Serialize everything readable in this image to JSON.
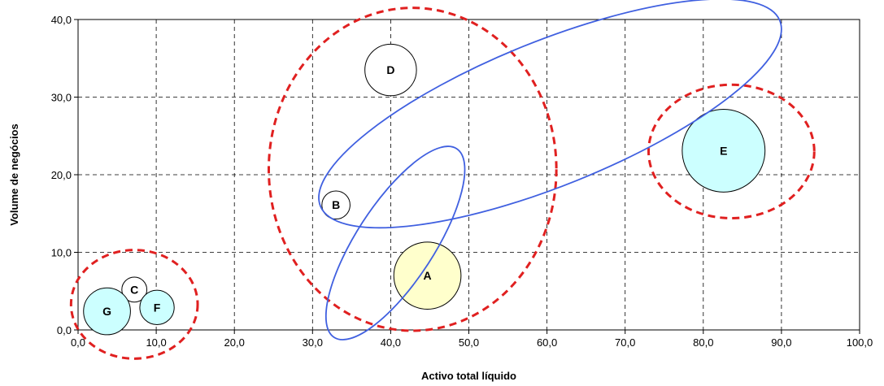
{
  "chart_data": {
    "type": "scatter",
    "subtype": "bubble",
    "xlabel": "Activo total líquido",
    "ylabel": "Volume de negócios",
    "xlim": [
      0,
      100
    ],
    "ylim": [
      0,
      40
    ],
    "x_ticks": [
      "0,0",
      "10,0",
      "20,0",
      "30,0",
      "40,0",
      "50,0",
      "60,0",
      "70,0",
      "80,0",
      "90,0",
      "100,0"
    ],
    "y_ticks": [
      "0,0",
      "10,0",
      "20,0",
      "30,0",
      "40,0"
    ],
    "grid": true,
    "grid_style": "dashed",
    "points": [
      {
        "label": "A",
        "x": 44.7,
        "y": 7.0,
        "size": 4.3,
        "color": "#ffffcc"
      },
      {
        "label": "B",
        "x": 33.0,
        "y": 16.1,
        "size": 1.8,
        "color": "#ffffff"
      },
      {
        "label": "C",
        "x": 7.2,
        "y": 5.2,
        "size": 1.6,
        "color": "#ffffff"
      },
      {
        "label": "D",
        "x": 40.0,
        "y": 33.5,
        "size": 3.3,
        "color": "#ffffff"
      },
      {
        "label": "E",
        "x": 82.6,
        "y": 23.1,
        "size": 5.3,
        "color": "#ccffff"
      },
      {
        "label": "F",
        "x": 10.1,
        "y": 2.9,
        "size": 2.2,
        "color": "#ccffff"
      },
      {
        "label": "G",
        "x": 3.7,
        "y": 2.4,
        "size": 3.0,
        "color": "#ccffff"
      }
    ],
    "annotations": [
      {
        "shape": "ellipse",
        "style": "dashed",
        "color": "#e02020",
        "cx": 7.2,
        "cy": 3.3,
        "rx": 8.1,
        "ry": 7.0,
        "rotation": 0
      },
      {
        "shape": "ellipse",
        "style": "dashed",
        "color": "#e02020",
        "cx": 42.8,
        "cy": 20.7,
        "rx": 18.4,
        "ry": 20.8,
        "rotation": 0
      },
      {
        "shape": "ellipse",
        "style": "dashed",
        "color": "#e02020",
        "cx": 83.6,
        "cy": 23.0,
        "rx": 10.6,
        "ry": 8.6,
        "rotation": 0
      },
      {
        "shape": "ellipse",
        "style": "solid",
        "color": "#4060e0",
        "cx": 60.4,
        "cy": 27.9,
        "rx": 31.7,
        "ry": 9.3,
        "rotation": 22
      },
      {
        "shape": "ellipse",
        "style": "solid",
        "color": "#4060e0",
        "cx": 40.6,
        "cy": 11.2,
        "rx": 14.4,
        "ry": 5.0,
        "rotation": 57
      }
    ]
  }
}
